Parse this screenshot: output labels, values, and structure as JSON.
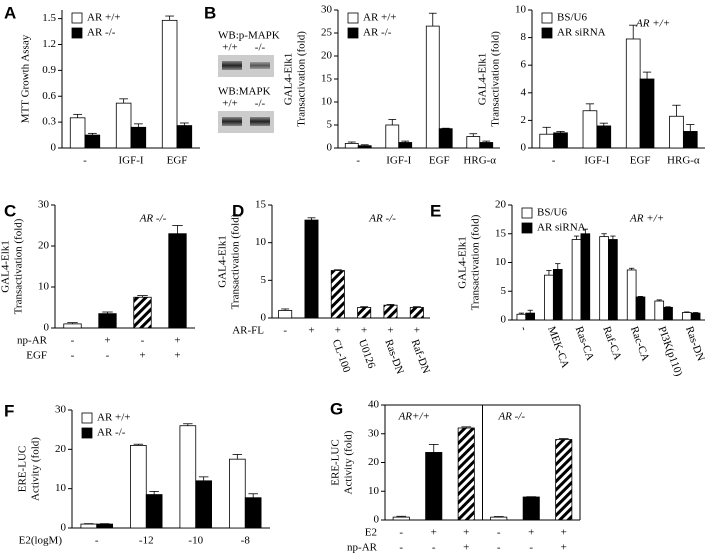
{
  "blot": {
    "label": "B",
    "panels": [
      {
        "title": "WB:p-MAPK",
        "lanes": [
          "+/+",
          "-/-"
        ]
      },
      {
        "title": "WB:MAPK",
        "lanes": [
          "+/+",
          "-/-"
        ]
      }
    ]
  },
  "chart_data": [
    {
      "type": "bar",
      "label": "A",
      "ylabel": [
        "MTT Growth Assay"
      ],
      "categories": [
        "-",
        "IGF-I",
        "EGF"
      ],
      "series": [
        {
          "name": "AR +/+",
          "color": "#ffffff",
          "values": [
            0.35,
            0.52,
            1.48
          ],
          "errors": [
            0.04,
            0.05,
            0.05
          ]
        },
        {
          "name": "AR -/-",
          "color": "#000000",
          "values": [
            0.15,
            0.24,
            0.26
          ],
          "errors": [
            0.02,
            0.04,
            0.03
          ]
        }
      ],
      "ylim": [
        0,
        1.6
      ],
      "yticks": [
        0,
        0.3,
        0.6,
        0.9,
        1.2,
        1.5
      ],
      "legend": "upper left"
    },
    {
      "type": "bar",
      "ylabel": [
        "GAL4-Elk1",
        "Transactivation (fold)"
      ],
      "categories": [
        "-",
        "IGF-I",
        "EGF",
        "HRG-α"
      ],
      "series": [
        {
          "name": "AR +/+",
          "color": "#ffffff",
          "values": [
            1,
            5,
            26.5,
            2.5
          ],
          "errors": [
            0.3,
            1.2,
            2.8,
            0.6
          ]
        },
        {
          "name": "AR -/-",
          "color": "#000000",
          "values": [
            0.5,
            1.2,
            4.2,
            1.2
          ],
          "errors": [
            0.2,
            0.3,
            0.1,
            0.3
          ]
        }
      ],
      "ylim": [
        0,
        30
      ],
      "yticks": [
        0,
        5,
        10,
        15,
        20,
        25,
        30
      ],
      "legend": "upper left"
    },
    {
      "type": "bar",
      "ylabel": [
        "GAL4-Elk1",
        "Transactivation (fold)"
      ],
      "annotation": "AR +/+",
      "categories": [
        "-",
        "IGF-I",
        "EGF",
        "HRG-α"
      ],
      "series": [
        {
          "name": "BS/U6",
          "color": "#ffffff",
          "values": [
            1,
            2.7,
            7.9,
            2.3
          ],
          "errors": [
            0.5,
            0.5,
            1.0,
            0.8
          ]
        },
        {
          "name": "AR siRNA",
          "color": "#000000",
          "values": [
            1.1,
            1.6,
            5.0,
            1.2
          ],
          "errors": [
            0.1,
            0.2,
            0.5,
            0.5
          ]
        }
      ],
      "ylim": [
        0,
        10
      ],
      "yticks": [
        0,
        2,
        4,
        6,
        8,
        10
      ],
      "legend": "upper left"
    },
    {
      "type": "bar",
      "label": "C",
      "ylabel": [
        "GAL4-Elk1",
        "Transactivation (fold)"
      ],
      "annotation": "AR -/-",
      "series": [
        {
          "values": [
            1,
            3.5,
            7.5,
            23
          ],
          "errors": [
            0.3,
            0.4,
            0.4,
            2
          ],
          "fills": [
            "#ffffff",
            "#000000",
            "hatch",
            "#000000"
          ]
        }
      ],
      "rows": [
        {
          "name": "np-AR",
          "values": [
            "-",
            "+",
            "-",
            "+"
          ]
        },
        {
          "name": "EGF",
          "values": [
            "-",
            "-",
            "+",
            "+"
          ]
        }
      ],
      "ylim": [
        0,
        30
      ],
      "yticks": [
        0,
        10,
        20,
        30
      ]
    },
    {
      "type": "bar",
      "label": "D",
      "ylabel": [
        "GAL4-Elk1",
        "Transactivation (fold)"
      ],
      "annotation": "AR -/-",
      "categories": [
        null,
        null,
        "CL-100",
        "U0126",
        "Ras-DN",
        "Raf-DN"
      ],
      "series": [
        {
          "values": [
            1,
            13,
            6.3,
            1.4,
            1.7,
            1.4
          ],
          "errors": [
            0.2,
            0.3,
            0.1,
            0.1,
            0.1,
            0.1
          ],
          "fills": [
            "#ffffff",
            "#000000",
            "hatch",
            "hatch",
            "hatch",
            "hatch"
          ]
        }
      ],
      "rows": [
        {
          "name": "AR-FL",
          "values": [
            "-",
            "+",
            "+",
            "+",
            "+",
            "+"
          ]
        }
      ],
      "ylim": [
        0,
        15
      ],
      "yticks": [
        0,
        5,
        10,
        15
      ]
    },
    {
      "type": "bar",
      "label": "E",
      "ylabel": [
        "GAL4-Elk1",
        "Transactivation (fold)"
      ],
      "annotation": "AR +/+",
      "categories": [
        "-",
        "MEK-CA",
        "Ras-CA",
        "Raf-CA",
        "Rac-CA",
        "PI3K(p110)",
        "Ras-DN"
      ],
      "series": [
        {
          "name": "BS/U6",
          "color": "#ffffff",
          "values": [
            1,
            7.8,
            14,
            14.5,
            8.7,
            3.3,
            1.3
          ],
          "errors": [
            0.2,
            0.8,
            0.6,
            0.5,
            0.3,
            0.2,
            0.1
          ]
        },
        {
          "name": "AR siRNA",
          "color": "#000000",
          "values": [
            1.2,
            8.8,
            15,
            14,
            4,
            2.2,
            1.2
          ],
          "errors": [
            0.5,
            1,
            0.8,
            0.6,
            0.1,
            0.1,
            0.1
          ]
        }
      ],
      "ylim": [
        0,
        20
      ],
      "yticks": [
        0,
        5,
        10,
        15,
        20
      ],
      "legend": "upper left"
    },
    {
      "type": "bar",
      "label": "F",
      "ylabel": [
        "ERE-LUC",
        "Activity (fold)"
      ],
      "xlabel": "E2(logM)",
      "categories": [
        "-",
        "-12",
        "-10",
        "-8"
      ],
      "series": [
        {
          "name": "AR +/+",
          "color": "#ffffff",
          "values": [
            1,
            21,
            26,
            17.5
          ],
          "errors": [
            0.1,
            0.3,
            0.5,
            1.2
          ]
        },
        {
          "name": "AR -/-",
          "color": "#000000",
          "values": [
            1,
            8.5,
            12,
            7.7
          ],
          "errors": [
            0.1,
            0.8,
            1,
            1
          ]
        }
      ],
      "ylim": [
        0,
        30
      ],
      "yticks": [
        0,
        10,
        20,
        30
      ],
      "legend": "upper left"
    },
    {
      "type": "bar",
      "label": "G",
      "ylabel": [
        "ERE-LUC",
        "Activity (fold)"
      ],
      "group_labels": [
        "AR+/+",
        "AR -/-"
      ],
      "series": [
        {
          "values": [
            1,
            23.5,
            32,
            1,
            8,
            28
          ],
          "errors": [
            0.3,
            2.8,
            0.4,
            0.2,
            0.1,
            0.3
          ],
          "fills": [
            "#ffffff",
            "#000000",
            "hatch",
            "#ffffff",
            "#000000",
            "hatch"
          ]
        }
      ],
      "rows": [
        {
          "name": "E2",
          "values": [
            "-",
            "+",
            "+",
            "-",
            "+",
            "+"
          ]
        },
        {
          "name": "np-AR",
          "values": [
            "-",
            "-",
            "+",
            "-",
            "-",
            "+"
          ]
        }
      ],
      "ylim": [
        0,
        40
      ],
      "yticks": [
        0,
        10,
        20,
        30,
        40
      ]
    }
  ]
}
